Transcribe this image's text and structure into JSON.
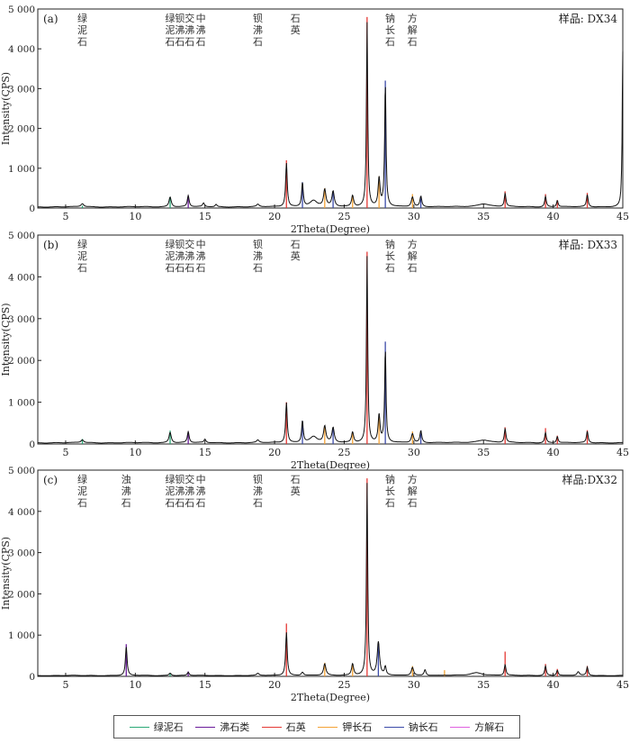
{
  "legend": [
    {
      "name": "绿泥石",
      "color": "#2aa876"
    },
    {
      "name": "沸石类",
      "color": "#6a1b9a"
    },
    {
      "name": "石英",
      "color": "#e53935"
    },
    {
      "name": "钾长石",
      "color": "#f4a236"
    },
    {
      "name": "钠长石",
      "color": "#3b4aa8"
    },
    {
      "name": "方解石",
      "color": "#e060e0"
    }
  ],
  "chart_data": [
    {
      "type": "line",
      "panel_label": "(a)",
      "sample_label": "样品: DX34",
      "xlabel": "2Theta(Degree)",
      "ylabel": "Intensity(CPS)",
      "xlim": [
        3,
        45
      ],
      "ylim": [
        0,
        5000
      ],
      "x_ticks": [
        5,
        10,
        15,
        20,
        25,
        30,
        35,
        40,
        45
      ],
      "y_ticks": [
        0,
        1000,
        2000,
        3000,
        4000,
        5000
      ],
      "y_tick_labels": [
        "0",
        "1 000",
        "2 000",
        "3 000",
        "4 000",
        "5 000"
      ],
      "baseline": 30,
      "peaks": [
        {
          "x": 6.2,
          "y": 80,
          "w": 0.12
        },
        {
          "x": 12.5,
          "y": 250,
          "w": 0.1
        },
        {
          "x": 13.8,
          "y": 280,
          "w": 0.08
        },
        {
          "x": 14.9,
          "y": 90,
          "w": 0.08
        },
        {
          "x": 15.8,
          "y": 60,
          "w": 0.08
        },
        {
          "x": 18.8,
          "y": 60,
          "w": 0.1
        },
        {
          "x": 20.85,
          "y": 1100,
          "w": 0.07
        },
        {
          "x": 22.0,
          "y": 600,
          "w": 0.07
        },
        {
          "x": 22.8,
          "y": 150,
          "w": 0.3
        },
        {
          "x": 23.6,
          "y": 420,
          "w": 0.1
        },
        {
          "x": 24.2,
          "y": 380,
          "w": 0.1
        },
        {
          "x": 25.6,
          "y": 280,
          "w": 0.09
        },
        {
          "x": 26.64,
          "y": 4620,
          "w": 0.055
        },
        {
          "x": 27.5,
          "y": 700,
          "w": 0.08
        },
        {
          "x": 27.95,
          "y": 3050,
          "w": 0.06
        },
        {
          "x": 29.9,
          "y": 250,
          "w": 0.1
        },
        {
          "x": 30.5,
          "y": 260,
          "w": 0.08
        },
        {
          "x": 35.0,
          "y": 80,
          "w": 0.5
        },
        {
          "x": 36.55,
          "y": 330,
          "w": 0.07
        },
        {
          "x": 39.45,
          "y": 260,
          "w": 0.07
        },
        {
          "x": 40.3,
          "y": 160,
          "w": 0.07
        },
        {
          "x": 42.45,
          "y": 300,
          "w": 0.07
        },
        {
          "x": 45.0,
          "y": 3900,
          "w": 0.05
        }
      ],
      "markers": [
        {
          "x": 6.2,
          "h": 60,
          "color": "#2aa876"
        },
        {
          "x": 12.5,
          "h": 280,
          "color": "#2aa876"
        },
        {
          "x": 13.8,
          "h": 320,
          "color": "#6a1b9a"
        },
        {
          "x": 20.85,
          "h": 1200,
          "color": "#e53935"
        },
        {
          "x": 22.0,
          "h": 650,
          "color": "#3b4aa8"
        },
        {
          "x": 23.6,
          "h": 500,
          "color": "#f4a236"
        },
        {
          "x": 24.2,
          "h": 420,
          "color": "#3b4aa8"
        },
        {
          "x": 25.6,
          "h": 300,
          "color": "#f4a236"
        },
        {
          "x": 26.64,
          "h": 4800,
          "color": "#e53935"
        },
        {
          "x": 27.5,
          "h": 800,
          "color": "#f4a236"
        },
        {
          "x": 27.95,
          "h": 3200,
          "color": "#3b4aa8"
        },
        {
          "x": 29.9,
          "h": 350,
          "color": "#f4a236"
        },
        {
          "x": 30.5,
          "h": 300,
          "color": "#3b4aa8"
        },
        {
          "x": 36.55,
          "h": 420,
          "color": "#e53935"
        },
        {
          "x": 39.45,
          "h": 350,
          "color": "#e53935"
        },
        {
          "x": 40.3,
          "h": 200,
          "color": "#e53935"
        },
        {
          "x": 42.45,
          "h": 380,
          "color": "#e53935"
        }
      ],
      "annotations": [
        {
          "x": 6.2,
          "text": "绿泥石"
        },
        {
          "x": 12.5,
          "text": "绿泥石"
        },
        {
          "x": 13.2,
          "text": "钡沸石"
        },
        {
          "x": 13.9,
          "text": "交沸石"
        },
        {
          "x": 14.7,
          "text": "中沸石"
        },
        {
          "x": 18.8,
          "text": "钡沸石"
        },
        {
          "x": 21.5,
          "text": "石英"
        },
        {
          "x": 28.3,
          "text": "钠长石"
        },
        {
          "x": 29.9,
          "text": "方解石"
        }
      ]
    },
    {
      "type": "line",
      "panel_label": "(b)",
      "sample_label": "样品: DX33",
      "xlabel": "2Theta(Degree)",
      "ylabel": "Intensity(CPS)",
      "xlim": [
        3,
        45
      ],
      "ylim": [
        0,
        5000
      ],
      "x_ticks": [
        5,
        10,
        15,
        20,
        25,
        30,
        35,
        40,
        45
      ],
      "y_ticks": [
        0,
        1000,
        2000,
        3000,
        4000,
        5000
      ],
      "y_tick_labels": [
        "0",
        "1 000",
        "2 000",
        "3 000",
        "4 000",
        "5 000"
      ],
      "baseline": 30,
      "peaks": [
        {
          "x": 6.2,
          "y": 70,
          "w": 0.12
        },
        {
          "x": 12.5,
          "y": 250,
          "w": 0.1
        },
        {
          "x": 13.8,
          "y": 260,
          "w": 0.08
        },
        {
          "x": 15.0,
          "y": 80,
          "w": 0.08
        },
        {
          "x": 18.8,
          "y": 60,
          "w": 0.1
        },
        {
          "x": 20.85,
          "y": 960,
          "w": 0.07
        },
        {
          "x": 22.0,
          "y": 520,
          "w": 0.07
        },
        {
          "x": 22.8,
          "y": 140,
          "w": 0.3
        },
        {
          "x": 23.6,
          "y": 380,
          "w": 0.1
        },
        {
          "x": 24.2,
          "y": 350,
          "w": 0.1
        },
        {
          "x": 25.6,
          "y": 250,
          "w": 0.09
        },
        {
          "x": 26.64,
          "y": 4450,
          "w": 0.055
        },
        {
          "x": 27.5,
          "y": 650,
          "w": 0.08
        },
        {
          "x": 27.95,
          "y": 2200,
          "w": 0.06
        },
        {
          "x": 29.9,
          "y": 220,
          "w": 0.1
        },
        {
          "x": 30.5,
          "y": 280,
          "w": 0.08
        },
        {
          "x": 35.0,
          "y": 70,
          "w": 0.5
        },
        {
          "x": 36.55,
          "y": 330,
          "w": 0.07
        },
        {
          "x": 39.45,
          "y": 240,
          "w": 0.07
        },
        {
          "x": 40.3,
          "y": 150,
          "w": 0.07
        },
        {
          "x": 42.45,
          "y": 270,
          "w": 0.07
        }
      ],
      "markers": [
        {
          "x": 6.2,
          "h": 120,
          "color": "#2aa876"
        },
        {
          "x": 12.5,
          "h": 320,
          "color": "#2aa876"
        },
        {
          "x": 13.8,
          "h": 300,
          "color": "#6a1b9a"
        },
        {
          "x": 20.85,
          "h": 1000,
          "color": "#e53935"
        },
        {
          "x": 22.0,
          "h": 550,
          "color": "#3b4aa8"
        },
        {
          "x": 23.6,
          "h": 420,
          "color": "#f4a236"
        },
        {
          "x": 24.2,
          "h": 400,
          "color": "#3b4aa8"
        },
        {
          "x": 25.6,
          "h": 280,
          "color": "#f4a236"
        },
        {
          "x": 26.64,
          "h": 4600,
          "color": "#e53935"
        },
        {
          "x": 27.5,
          "h": 700,
          "color": "#f4a236"
        },
        {
          "x": 27.95,
          "h": 2450,
          "color": "#3b4aa8"
        },
        {
          "x": 29.9,
          "h": 300,
          "color": "#f4a236"
        },
        {
          "x": 30.5,
          "h": 320,
          "color": "#3b4aa8"
        },
        {
          "x": 36.55,
          "h": 400,
          "color": "#e53935"
        },
        {
          "x": 39.45,
          "h": 380,
          "color": "#e53935"
        },
        {
          "x": 40.3,
          "h": 200,
          "color": "#e53935"
        },
        {
          "x": 42.45,
          "h": 330,
          "color": "#e53935"
        }
      ],
      "annotations": [
        {
          "x": 6.2,
          "text": "绿泥石"
        },
        {
          "x": 12.5,
          "text": "绿泥石"
        },
        {
          "x": 13.2,
          "text": "钡沸石"
        },
        {
          "x": 13.9,
          "text": "交沸石"
        },
        {
          "x": 14.7,
          "text": "中沸石"
        },
        {
          "x": 18.8,
          "text": "钡沸石"
        },
        {
          "x": 21.5,
          "text": "石英"
        },
        {
          "x": 28.3,
          "text": "钠长石"
        },
        {
          "x": 29.9,
          "text": "方解石"
        }
      ]
    },
    {
      "type": "line",
      "panel_label": "(c)",
      "sample_label": "样品:DX32",
      "xlabel": "2Theta(Degree)",
      "ylabel": "Intensity(CPS)",
      "xlim": [
        3,
        45
      ],
      "ylim": [
        0,
        5000
      ],
      "x_ticks": [
        5,
        10,
        15,
        20,
        25,
        30,
        35,
        40,
        45
      ],
      "y_ticks": [
        0,
        1000,
        2000,
        3000,
        4000,
        5000
      ],
      "y_tick_labels": [
        "0",
        "1 000",
        "2 000",
        "3 000",
        "4 000",
        "5 000"
      ],
      "baseline": 20,
      "peaks": [
        {
          "x": 9.35,
          "y": 700,
          "w": 0.07
        },
        {
          "x": 12.5,
          "y": 60,
          "w": 0.1
        },
        {
          "x": 13.8,
          "y": 80,
          "w": 0.08
        },
        {
          "x": 18.8,
          "y": 50,
          "w": 0.1
        },
        {
          "x": 20.85,
          "y": 1050,
          "w": 0.07
        },
        {
          "x": 22.0,
          "y": 80,
          "w": 0.1
        },
        {
          "x": 23.6,
          "y": 280,
          "w": 0.1
        },
        {
          "x": 25.6,
          "y": 280,
          "w": 0.09
        },
        {
          "x": 26.64,
          "y": 4650,
          "w": 0.055
        },
        {
          "x": 27.45,
          "y": 800,
          "w": 0.1
        },
        {
          "x": 27.95,
          "y": 200,
          "w": 0.07
        },
        {
          "x": 29.9,
          "y": 200,
          "w": 0.1
        },
        {
          "x": 30.8,
          "y": 140,
          "w": 0.08
        },
        {
          "x": 34.5,
          "y": 70,
          "w": 0.5
        },
        {
          "x": 36.55,
          "y": 260,
          "w": 0.07
        },
        {
          "x": 39.45,
          "y": 230,
          "w": 0.07
        },
        {
          "x": 40.3,
          "y": 130,
          "w": 0.07
        },
        {
          "x": 41.8,
          "y": 90,
          "w": 0.1
        },
        {
          "x": 42.45,
          "y": 200,
          "w": 0.07
        }
      ],
      "markers": [
        {
          "x": 9.35,
          "h": 780,
          "color": "#6a1b9a"
        },
        {
          "x": 12.5,
          "h": 80,
          "color": "#2aa876"
        },
        {
          "x": 13.8,
          "h": 120,
          "color": "#6a1b9a"
        },
        {
          "x": 20.85,
          "h": 1280,
          "color": "#e53935"
        },
        {
          "x": 23.6,
          "h": 330,
          "color": "#f4a236"
        },
        {
          "x": 25.6,
          "h": 300,
          "color": "#f4a236"
        },
        {
          "x": 26.64,
          "h": 4800,
          "color": "#e53935"
        },
        {
          "x": 27.45,
          "h": 820,
          "color": "#3b4aa8"
        },
        {
          "x": 29.9,
          "h": 250,
          "color": "#f4a236"
        },
        {
          "x": 32.2,
          "h": 150,
          "color": "#f4a236"
        },
        {
          "x": 36.55,
          "h": 600,
          "color": "#e53935"
        },
        {
          "x": 39.45,
          "h": 300,
          "color": "#e53935"
        },
        {
          "x": 40.3,
          "h": 180,
          "color": "#e53935"
        },
        {
          "x": 42.45,
          "h": 250,
          "color": "#e53935"
        }
      ],
      "annotations": [
        {
          "x": 6.2,
          "text": "绿泥石"
        },
        {
          "x": 9.35,
          "text": "浊沸石"
        },
        {
          "x": 12.5,
          "text": "绿泥石"
        },
        {
          "x": 13.2,
          "text": "钡沸石"
        },
        {
          "x": 13.9,
          "text": "交沸石"
        },
        {
          "x": 14.7,
          "text": "中沸石"
        },
        {
          "x": 18.8,
          "text": "钡沸石"
        },
        {
          "x": 21.5,
          "text": "石英"
        },
        {
          "x": 28.3,
          "text": "钠长石"
        },
        {
          "x": 29.9,
          "text": "方解石"
        }
      ]
    }
  ]
}
